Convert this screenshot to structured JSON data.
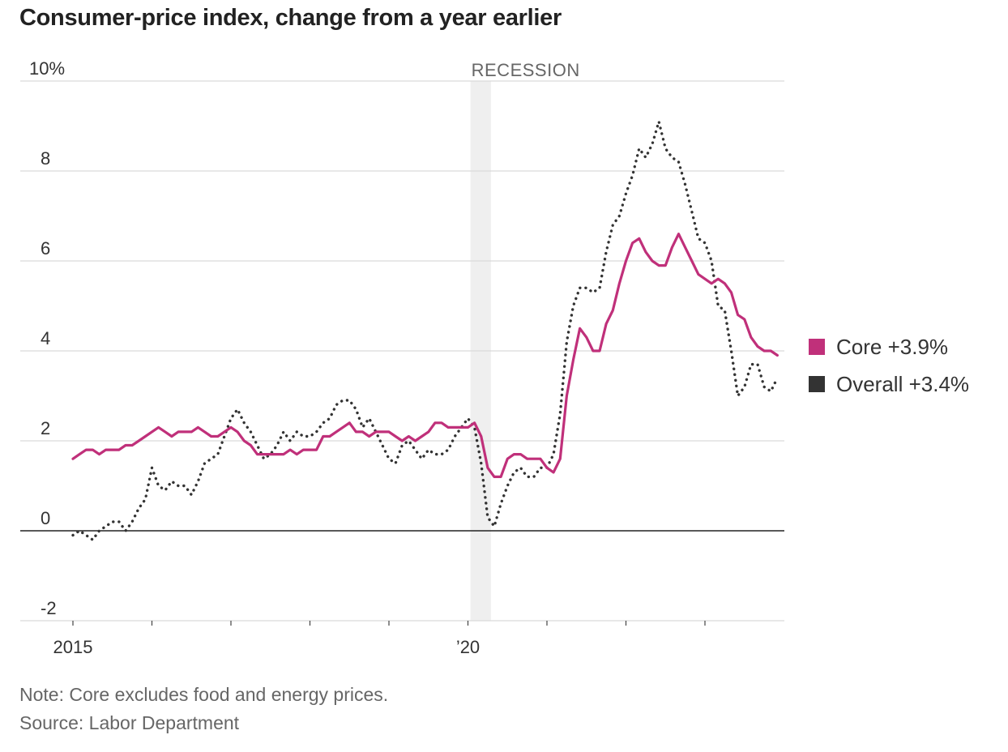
{
  "title": "Consumer-price index, change from a year earlier",
  "legend": [
    {
      "label": "Core +3.9%",
      "color": "#c0307a"
    },
    {
      "label": "Overall +3.4%",
      "color": "#333333"
    }
  ],
  "recession_label": "RECESSION",
  "note": "Note: Core excludes food and energy prices.",
  "source": "Source: Labor Department",
  "chart_data": {
    "type": "line",
    "ylim": [
      -2,
      10
    ],
    "yticks": [
      {
        "value": 10,
        "label": "10%"
      },
      {
        "value": 8,
        "label": "8"
      },
      {
        "value": 6,
        "label": "6"
      },
      {
        "value": 4,
        "label": "4"
      },
      {
        "value": 2,
        "label": "2"
      },
      {
        "value": 0,
        "label": "0"
      },
      {
        "value": -2,
        "label": "-2"
      }
    ],
    "x_start": "2015-01",
    "xlim": [
      "2015-01",
      "2024-01"
    ],
    "xtick_years": [
      2015,
      2016,
      2017,
      2018,
      2019,
      2020,
      2021,
      2022,
      2023
    ],
    "xtick_labels": [
      {
        "year": 2015,
        "label": "2015"
      },
      {
        "year": 2020,
        "label": "’20"
      }
    ],
    "recession": {
      "start": "2020-02",
      "end": "2020-04"
    },
    "series": [
      {
        "name": "Core",
        "label": "Core +3.9%",
        "color": "#c0307a",
        "style": "solid",
        "values": [
          1.6,
          1.7,
          1.8,
          1.8,
          1.7,
          1.8,
          1.8,
          1.8,
          1.9,
          1.9,
          2.0,
          2.1,
          2.2,
          2.3,
          2.2,
          2.1,
          2.2,
          2.2,
          2.2,
          2.3,
          2.2,
          2.1,
          2.1,
          2.2,
          2.3,
          2.2,
          2.0,
          1.9,
          1.7,
          1.7,
          1.7,
          1.7,
          1.7,
          1.8,
          1.7,
          1.8,
          1.8,
          1.8,
          2.1,
          2.1,
          2.2,
          2.3,
          2.4,
          2.2,
          2.2,
          2.1,
          2.2,
          2.2,
          2.2,
          2.1,
          2.0,
          2.1,
          2.0,
          2.1,
          2.2,
          2.4,
          2.4,
          2.3,
          2.3,
          2.3,
          2.3,
          2.4,
          2.1,
          1.4,
          1.2,
          1.2,
          1.6,
          1.7,
          1.7,
          1.6,
          1.6,
          1.6,
          1.4,
          1.3,
          1.6,
          3.0,
          3.8,
          4.5,
          4.3,
          4.0,
          4.0,
          4.6,
          4.9,
          5.5,
          6.0,
          6.4,
          6.5,
          6.2,
          6.0,
          5.9,
          5.9,
          6.3,
          6.6,
          6.3,
          6.0,
          5.7,
          5.6,
          5.5,
          5.6,
          5.5,
          5.3,
          4.8,
          4.7,
          4.3,
          4.1,
          4.0,
          4.0,
          3.9
        ]
      },
      {
        "name": "Overall",
        "label": "Overall +3.4%",
        "color": "#333333",
        "style": "dotted",
        "values": [
          -0.1,
          0.0,
          -0.1,
          -0.2,
          0.0,
          0.1,
          0.2,
          0.2,
          0.0,
          0.2,
          0.5,
          0.7,
          1.4,
          1.0,
          0.9,
          1.1,
          1.0,
          1.0,
          0.8,
          1.1,
          1.5,
          1.6,
          1.7,
          2.1,
          2.5,
          2.7,
          2.4,
          2.2,
          1.9,
          1.6,
          1.7,
          1.9,
          2.2,
          2.0,
          2.2,
          2.1,
          2.1,
          2.2,
          2.4,
          2.5,
          2.8,
          2.9,
          2.9,
          2.7,
          2.3,
          2.5,
          2.2,
          1.9,
          1.6,
          1.5,
          1.9,
          2.0,
          1.8,
          1.6,
          1.8,
          1.7,
          1.7,
          1.8,
          2.1,
          2.3,
          2.5,
          2.3,
          1.5,
          0.3,
          0.1,
          0.6,
          1.0,
          1.3,
          1.4,
          1.2,
          1.2,
          1.4,
          1.4,
          1.7,
          2.6,
          4.2,
          5.0,
          5.4,
          5.4,
          5.3,
          5.4,
          6.2,
          6.8,
          7.0,
          7.5,
          7.9,
          8.5,
          8.3,
          8.6,
          9.1,
          8.5,
          8.3,
          8.2,
          7.7,
          7.1,
          6.5,
          6.4,
          6.0,
          5.0,
          4.9,
          4.0,
          3.0,
          3.2,
          3.7,
          3.7,
          3.2,
          3.1,
          3.4
        ]
      }
    ]
  }
}
